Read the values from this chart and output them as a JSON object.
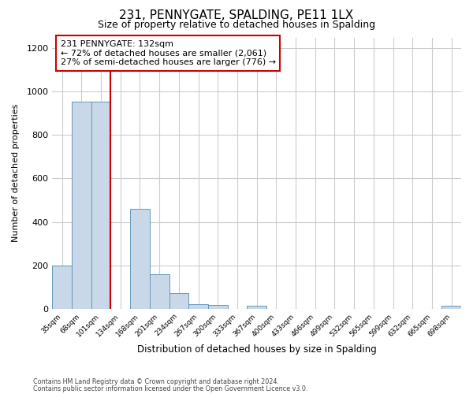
{
  "title": "231, PENNYGATE, SPALDING, PE11 1LX",
  "subtitle": "Size of property relative to detached houses in Spalding",
  "xlabel": "Distribution of detached houses by size in Spalding",
  "ylabel": "Number of detached properties",
  "bar_labels": [
    "35sqm",
    "68sqm",
    "101sqm",
    "134sqm",
    "168sqm",
    "201sqm",
    "234sqm",
    "267sqm",
    "300sqm",
    "333sqm",
    "367sqm",
    "400sqm",
    "433sqm",
    "466sqm",
    "499sqm",
    "532sqm",
    "565sqm",
    "599sqm",
    "632sqm",
    "665sqm",
    "698sqm"
  ],
  "bar_values": [
    200,
    955,
    955,
    0,
    460,
    160,
    73,
    22,
    18,
    0,
    13,
    0,
    0,
    0,
    0,
    0,
    0,
    0,
    0,
    0,
    12
  ],
  "bar_color": "#c8d8e8",
  "bar_edge_color": "#6699bb",
  "vline_color": "#cc0000",
  "annotation_title": "231 PENNYGATE: 132sqm",
  "annotation_line1": "← 72% of detached houses are smaller (2,061)",
  "annotation_line2": "27% of semi-detached houses are larger (776) →",
  "annotation_box_color": "#ffffff",
  "annotation_box_edge": "#cc0000",
  "ylim": [
    0,
    1250
  ],
  "yticks": [
    0,
    200,
    400,
    600,
    800,
    1000,
    1200
  ],
  "footer1": "Contains HM Land Registry data © Crown copyright and database right 2024.",
  "footer2": "Contains public sector information licensed under the Open Government Licence v3.0.",
  "bg_color": "#ffffff",
  "grid_color": "#cccccc",
  "title_fontsize": 11,
  "subtitle_fontsize": 9
}
